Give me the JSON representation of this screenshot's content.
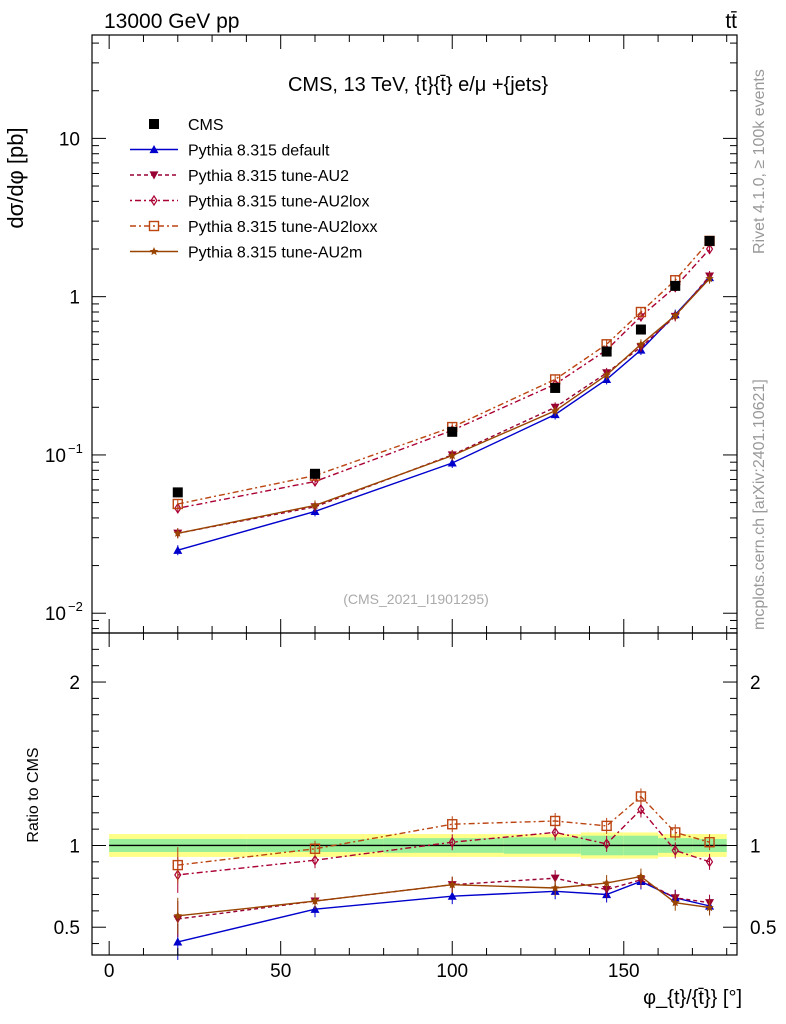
{
  "header": {
    "left": "13000 GeV pp",
    "right": "tt̄",
    "side_top": "Rivet 4.1.0, ≥ 100k events",
    "side_bottom": "mcplots.cern.ch [arXiv:2401.10621]"
  },
  "chart_data": {
    "type": "line",
    "title": "CMS, 13 TeV, {t}{t̄} e/μ +{jets}",
    "watermark": "(CMS_2021_I1901295)",
    "ylabel_main": "dσ/dφ [pb]",
    "ylabel_ratio": "Ratio to CMS",
    "xlabel": "φ_{t}/{t̄}} [°]",
    "main_ylim": [
      0.0075,
      45
    ],
    "main_yscale": "log",
    "main_yticks": [
      {
        "v": 0.01,
        "b": "10",
        "e": "−2"
      },
      {
        "v": 0.1,
        "b": "10",
        "e": "−1"
      },
      {
        "v": 1,
        "b": "1",
        "e": ""
      },
      {
        "v": 10,
        "b": "10",
        "e": ""
      }
    ],
    "ratio_ylim": [
      0.33,
      2.3
    ],
    "ratio_yticks": [
      "0.5",
      "1",
      "2"
    ],
    "xlim": [
      -5,
      183
    ],
    "xticks": [
      "0",
      "50",
      "100",
      "150"
    ],
    "x": [
      20,
      60,
      100,
      130,
      145,
      155,
      165,
      175
    ],
    "data": {
      "name": "CMS",
      "values": [
        0.058,
        0.076,
        0.14,
        0.265,
        0.45,
        0.62,
        1.17,
        2.25
      ],
      "band_inner": [
        0.04,
        0.04,
        0.045,
        0.05,
        0.06,
        0.06,
        0.045,
        0.04
      ],
      "band_outer": [
        0.07,
        0.07,
        0.07,
        0.07,
        0.08,
        0.08,
        0.07,
        0.07
      ]
    },
    "series": [
      {
        "name": "Pythia 8.315 default",
        "color": "#0000cc",
        "marker": "triangle-up",
        "values": [
          0.025,
          0.044,
          0.089,
          0.18,
          0.3,
          0.46,
          0.77,
          1.32
        ],
        "ratio": [
          0.41,
          0.61,
          0.69,
          0.72,
          0.7,
          0.78,
          0.68,
          0.63
        ]
      },
      {
        "name": "Pythia 8.315 tune-AU2",
        "color": "#990033",
        "marker": "triangle-down",
        "values": [
          0.032,
          0.047,
          0.1,
          0.2,
          0.33,
          0.48,
          0.75,
          1.35
        ],
        "ratio": [
          0.55,
          0.66,
          0.76,
          0.8,
          0.73,
          0.79,
          0.68,
          0.65
        ]
      },
      {
        "name": "Pythia 8.315 tune-AU2lox",
        "color": "#aa0033",
        "marker": "diamond-open",
        "values": [
          0.046,
          0.068,
          0.143,
          0.28,
          0.46,
          0.75,
          1.15,
          2.0
        ],
        "ratio": [
          0.82,
          0.91,
          1.02,
          1.08,
          1.01,
          1.22,
          0.97,
          0.9
        ]
      },
      {
        "name": "Pythia 8.315 tune-AU2loxx",
        "color": "#bb4411",
        "marker": "square-open",
        "values": [
          0.049,
          0.074,
          0.15,
          0.3,
          0.5,
          0.8,
          1.27,
          2.25
        ],
        "ratio": [
          0.88,
          0.98,
          1.13,
          1.15,
          1.12,
          1.3,
          1.08,
          1.02
        ]
      },
      {
        "name": "Pythia 8.315 tune-AU2m",
        "color": "#994400",
        "marker": "star",
        "values": [
          0.032,
          0.048,
          0.099,
          0.19,
          0.32,
          0.5,
          0.76,
          1.3
        ],
        "ratio": [
          0.57,
          0.66,
          0.76,
          0.74,
          0.77,
          0.81,
          0.65,
          0.62
        ]
      }
    ]
  }
}
